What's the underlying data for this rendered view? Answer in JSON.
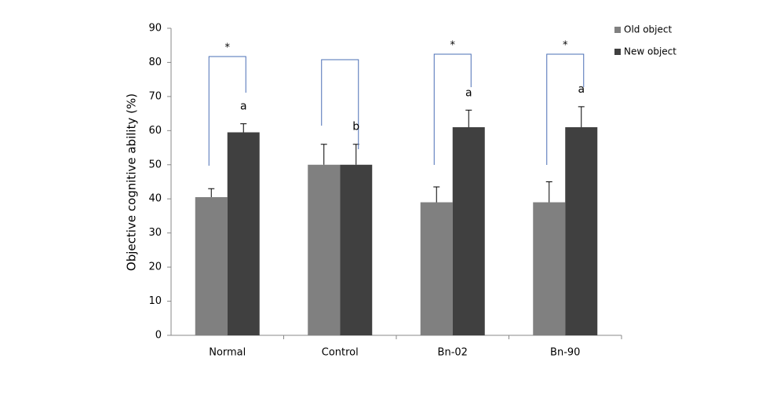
{
  "chart_data": {
    "type": "bar",
    "y_label": "Objective cognitive ability (%)",
    "categories": [
      "Normal",
      "Control",
      "Bn-02",
      "Bn-90"
    ],
    "series": [
      {
        "name": "Old object",
        "color": "#808080",
        "values": [
          40.5,
          50,
          39,
          39
        ],
        "errors": [
          2.5,
          6,
          4.5,
          6
        ]
      },
      {
        "name": "New object",
        "color": "#404040",
        "values": [
          59.5,
          50,
          61,
          61
        ],
        "errors": [
          2.5,
          6,
          5,
          6
        ]
      }
    ],
    "letters": [
      "a",
      "b",
      "a",
      "a"
    ],
    "stars": [
      "*",
      null,
      "*",
      "*"
    ],
    "ylim": [
      0,
      90
    ],
    "yticks": [
      0,
      10,
      20,
      30,
      40,
      50,
      60,
      70,
      80,
      90
    ],
    "grid": false,
    "legend": "top-right"
  }
}
